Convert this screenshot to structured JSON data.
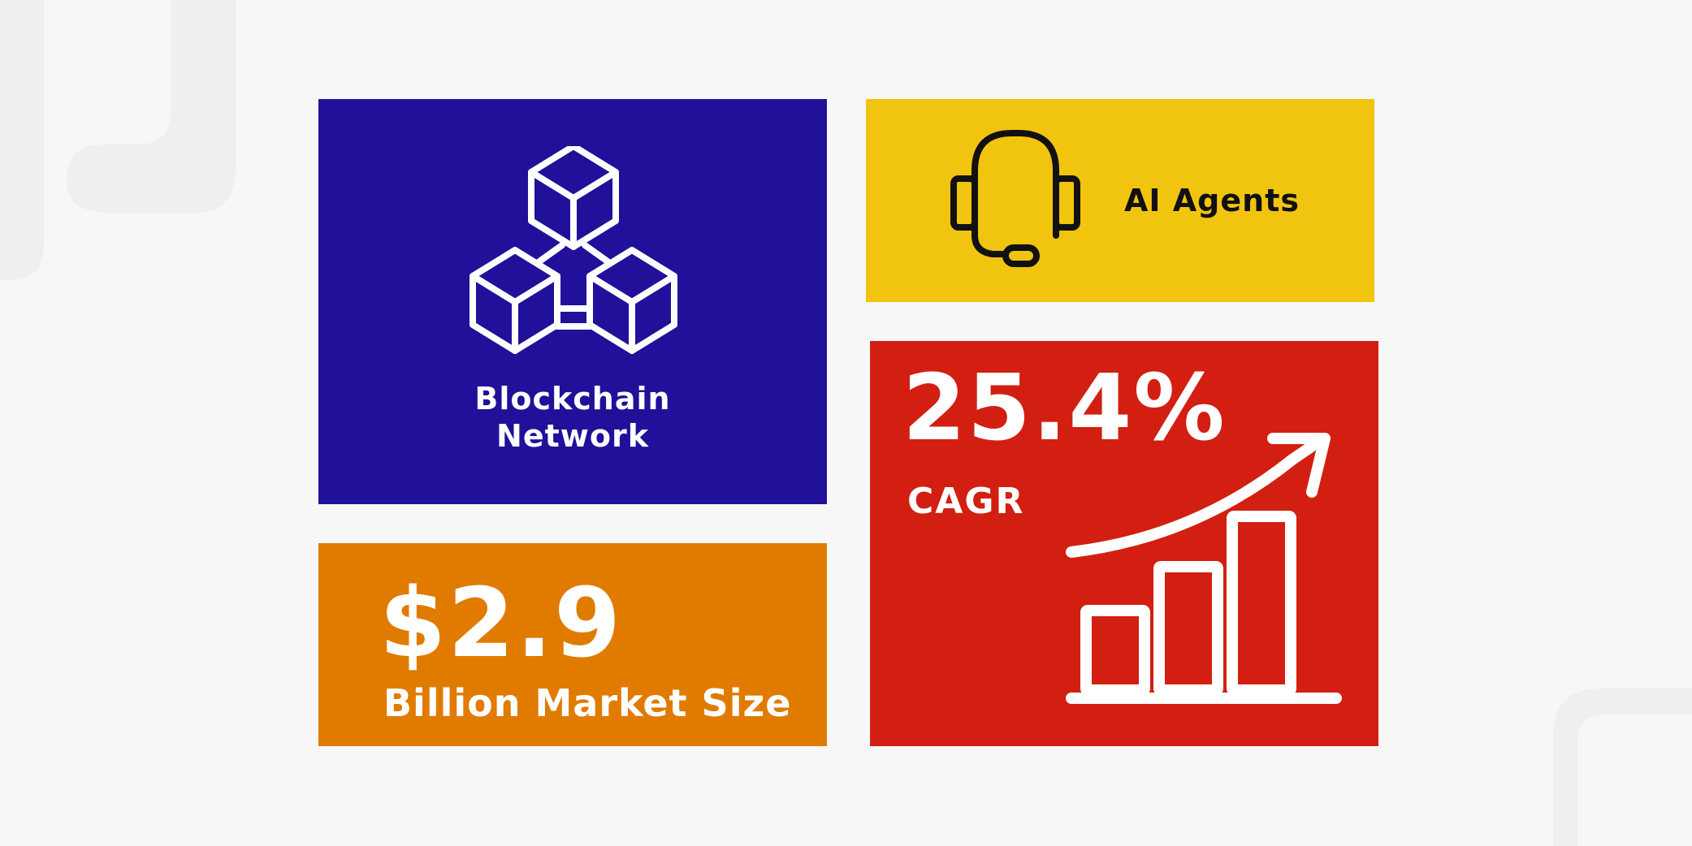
{
  "colors": {
    "background": "#f7f7f7",
    "blockchain_tile": "#21109a",
    "ai_tile": "#f1c40f",
    "market_tile": "#e07b00",
    "cagr_tile": "#d21f11",
    "light_text": "#ffffff",
    "dark_text": "#111111"
  },
  "tiles": {
    "blockchain": {
      "icon": "blockchain-cubes-icon",
      "label_line1": "Blockchain",
      "label_line2": "Network"
    },
    "ai_agents": {
      "icon": "headset-icon",
      "label": "AI Agents"
    },
    "market_size": {
      "value": "$2.9",
      "label": "Billion Market Size"
    },
    "cagr": {
      "value": "25.4%",
      "label": "CAGR",
      "icon": "growth-bar-chart-icon"
    }
  }
}
